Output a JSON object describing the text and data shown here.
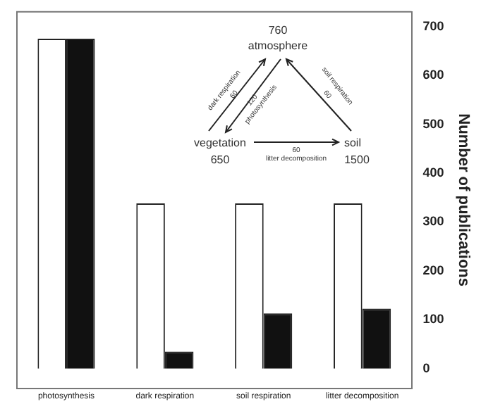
{
  "chart_data": {
    "type": "bar",
    "ylabel": "Number of publications",
    "categories": [
      "photosynthesis",
      "dark respiration",
      "soil respiration",
      "litter decomposition"
    ],
    "series": [
      {
        "color": "#ffffff",
        "values": [
          675,
          338,
          338,
          338
        ]
      },
      {
        "color": "#111111",
        "values": [
          675,
          35,
          113,
          123
        ]
      }
    ],
    "ylim": [
      -40,
      730
    ],
    "yticks": [
      0,
      100,
      200,
      300,
      400,
      500,
      600,
      700
    ],
    "grid": false,
    "legend": false,
    "annotations": [
      "760",
      "atmosphere",
      "vegetation",
      "650",
      "soil",
      "1500",
      "dark respiration",
      "60",
      "120",
      "photosynthesis",
      "soil respiration",
      "60",
      "60",
      "litter decomposition"
    ]
  }
}
